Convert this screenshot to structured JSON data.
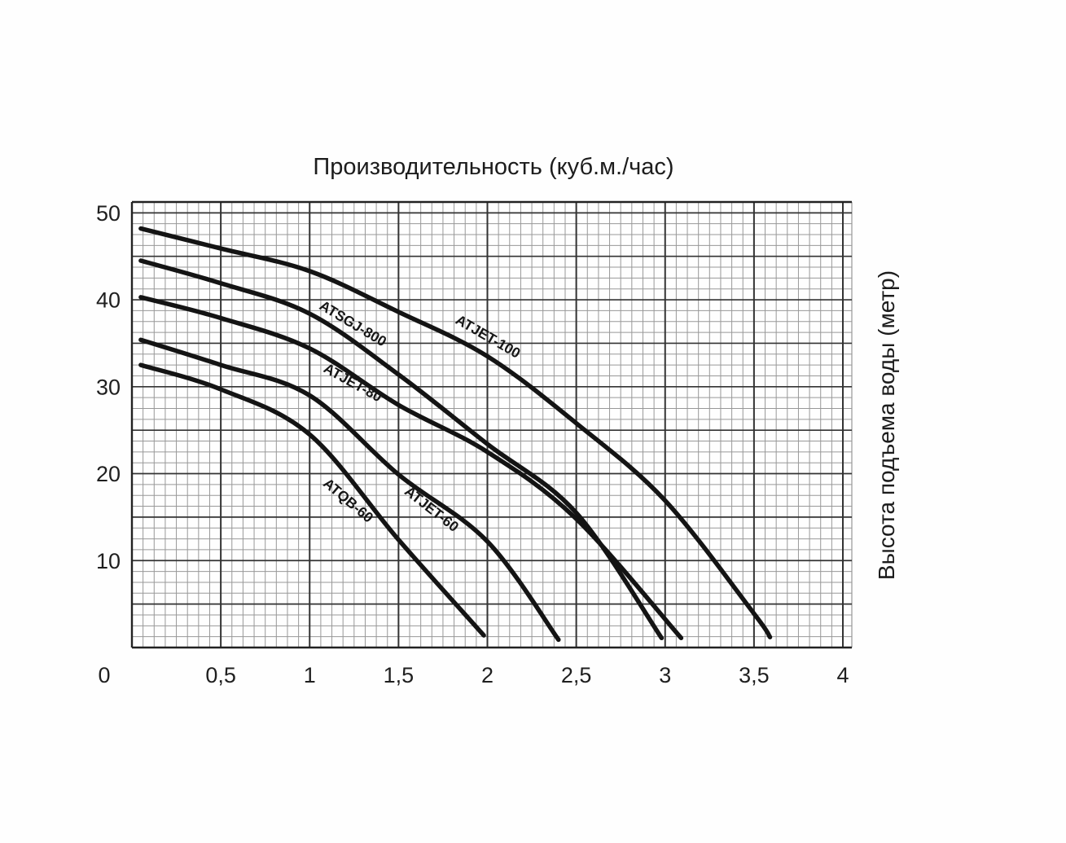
{
  "chart_data": {
    "type": "line",
    "title": "Производительность (куб.м./час)",
    "xlabel": "Производительность (куб.м./час)",
    "ylabel": "Высота подъема воды (метр)",
    "xlim": [
      0,
      4
    ],
    "ylim": [
      0,
      51.25
    ],
    "x_ticks": [
      {
        "label": "0",
        "value": 0
      },
      {
        "label": "0,5",
        "value": 0.5
      },
      {
        "label": "1",
        "value": 1
      },
      {
        "label": "1,5",
        "value": 1.5
      },
      {
        "label": "2",
        "value": 2
      },
      {
        "label": "2,5",
        "value": 2.5
      },
      {
        "label": "3",
        "value": 3
      },
      {
        "label": "3,5",
        "value": 3.5
      },
      {
        "label": "4",
        "value": 4
      }
    ],
    "y_ticks": [
      {
        "label": "10",
        "value": 10
      },
      {
        "label": "20",
        "value": 20
      },
      {
        "label": "30",
        "value": 30
      },
      {
        "label": "40",
        "value": 40
      },
      {
        "label": "50",
        "value": 50
      }
    ],
    "grid": {
      "visible": true,
      "minor_x_step": 0.0625,
      "minor_y_step": 1.25,
      "major_x_step": 0.5,
      "major_y_step": 5
    },
    "legend_position": "labels-on-curves",
    "series": [
      {
        "name": "ATJET-100",
        "points": [
          [
            0.05,
            48.2
          ],
          [
            0.5,
            45.9
          ],
          [
            1,
            43.3
          ],
          [
            1.5,
            38.6
          ],
          [
            2,
            33.5
          ],
          [
            2.5,
            25.8
          ],
          [
            3,
            16.9
          ],
          [
            3.5,
            3.9
          ],
          [
            3.59,
            1.2
          ]
        ],
        "label": {
          "x": 1.99,
          "y": 35.3,
          "angle": 30
        }
      },
      {
        "name": "ATSGJ-800",
        "points": [
          [
            0.05,
            44.5
          ],
          [
            0.5,
            41.9
          ],
          [
            1,
            38.4
          ],
          [
            1.5,
            31.4
          ],
          [
            2,
            23.4
          ],
          [
            2.5,
            15.5
          ],
          [
            2.98,
            1.1
          ]
        ],
        "label": {
          "x": 1.23,
          "y": 36.8,
          "angle": 31
        }
      },
      {
        "name": "ATJET-80",
        "points": [
          [
            0.05,
            40.3
          ],
          [
            0.5,
            37.9
          ],
          [
            1,
            34.4
          ],
          [
            1.5,
            27.9
          ],
          [
            2,
            22.5
          ],
          [
            2.5,
            14.8
          ],
          [
            3.09,
            1.1
          ]
        ],
        "label": {
          "x": 1.23,
          "y": 30.0,
          "angle": 29
        }
      },
      {
        "name": "ATJET-60",
        "points": [
          [
            0.05,
            35.4
          ],
          [
            0.5,
            32.5
          ],
          [
            1,
            29.0
          ],
          [
            1.5,
            19.9
          ],
          [
            2,
            12.2
          ],
          [
            2.4,
            0.9
          ]
        ],
        "label": {
          "x": 1.67,
          "y": 15.5,
          "angle": 38
        }
      },
      {
        "name": "ATQB-60",
        "points": [
          [
            0.05,
            32.5
          ],
          [
            0.5,
            29.7
          ],
          [
            1,
            24.5
          ],
          [
            1.5,
            12.4
          ],
          [
            1.98,
            1.4
          ]
        ],
        "label": {
          "x": 1.2,
          "y": 16.5,
          "angle": 40
        }
      }
    ],
    "colors": {
      "curve": "#141414",
      "grid_minor": "#989898",
      "grid_major": "#333333",
      "frame": "#222222",
      "text": "#1f1f1f",
      "background": "#fefefe"
    }
  }
}
